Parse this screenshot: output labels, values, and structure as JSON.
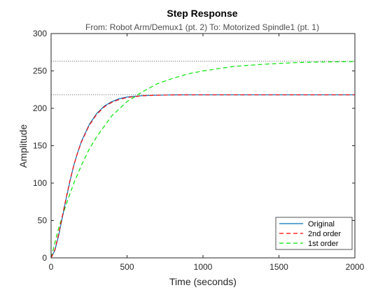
{
  "chart_data": {
    "type": "line",
    "title": "Step Response",
    "subtitle": "From: Robot Arm/Demux1 (pt. 2)  To: Motorized  Spindle1 (pt. 1)",
    "xlabel": "Time (seconds)",
    "ylabel": "Amplitude",
    "xlim": [
      0,
      2000
    ],
    "ylim": [
      0,
      300
    ],
    "xticks": [
      0,
      500,
      1000,
      1500,
      2000
    ],
    "yticks": [
      0,
      50,
      100,
      150,
      200,
      250,
      300
    ],
    "x_tick_labels": [
      "0",
      "500",
      "1000",
      "1500",
      "2000"
    ],
    "y_tick_labels": [
      "0",
      "50",
      "100",
      "150",
      "200",
      "250",
      "300"
    ],
    "grid": false,
    "legend_position": "bottom-right",
    "reference_lines": [
      {
        "y": 218,
        "style": "dotted",
        "color": "#4d4d4d"
      },
      {
        "y": 263,
        "style": "dotted",
        "color": "#4d4d4d"
      }
    ],
    "series": [
      {
        "name": "Original",
        "color": "#0072bd",
        "style": "solid",
        "x": [
          0,
          25,
          50,
          75,
          100,
          125,
          150,
          175,
          200,
          250,
          300,
          350,
          400,
          450,
          500,
          600,
          700,
          800,
          900,
          1000,
          1200,
          1500,
          1800,
          2000
        ],
        "y": [
          0,
          10,
          30,
          55,
          80,
          103,
          124,
          141,
          156,
          178,
          193,
          203,
          209,
          213,
          215,
          217,
          217.6,
          217.9,
          218,
          218,
          218,
          218,
          218,
          218
        ]
      },
      {
        "name": "2nd order",
        "color": "#ff0000",
        "style": "dashed",
        "x": [
          0,
          25,
          50,
          75,
          100,
          125,
          150,
          175,
          200,
          250,
          300,
          350,
          400,
          450,
          500,
          600,
          700,
          800,
          900,
          1000,
          1200,
          1500,
          1800,
          2000
        ],
        "y": [
          0,
          11,
          32,
          57,
          81,
          104,
          124,
          141,
          155,
          177,
          192,
          202,
          208,
          212,
          214.5,
          216.8,
          217.6,
          217.9,
          218,
          218,
          218,
          218,
          218,
          218
        ]
      },
      {
        "name": "1st order",
        "color": "#00e600",
        "style": "dashed",
        "x": [
          0,
          50,
          100,
          150,
          200,
          250,
          300,
          400,
          500,
          600,
          700,
          800,
          900,
          1000,
          1200,
          1400,
          1600,
          1800,
          2000
        ],
        "y": [
          0,
          40,
          72,
          100,
          124,
          145,
          162,
          190,
          209,
          222,
          233,
          240,
          246,
          250,
          256,
          259,
          261,
          262,
          262.5
        ]
      }
    ]
  }
}
